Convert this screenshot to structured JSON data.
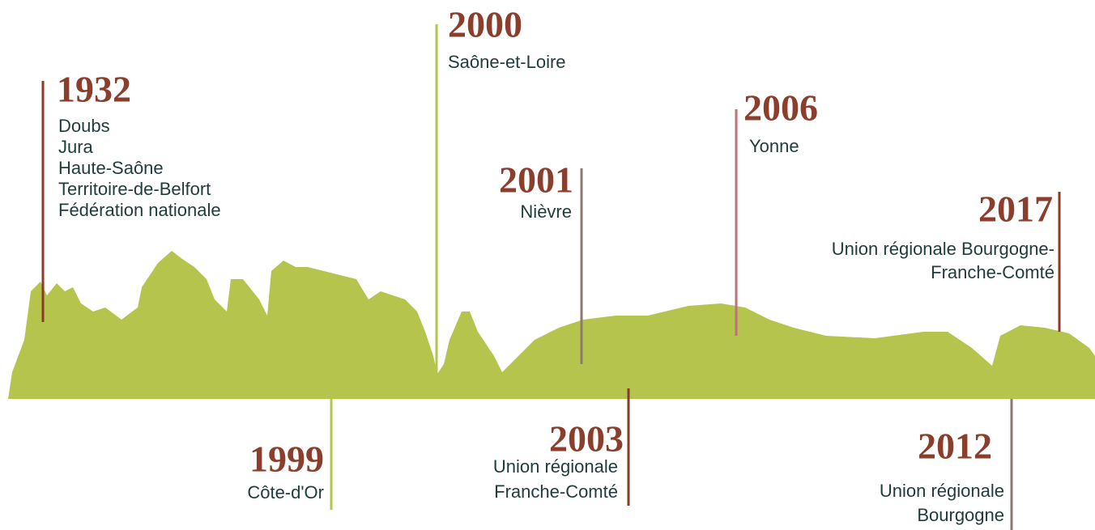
{
  "events": [
    {
      "year": "1932",
      "lines": [
        "Doubs",
        "Jura",
        "Haute-Saône",
        "Territoire-de-Belfort",
        "Fédération nationale"
      ]
    },
    {
      "year": "1999",
      "lines": [
        "Côte-d'Or"
      ]
    },
    {
      "year": "2000",
      "lines": [
        "Saône-et-Loire"
      ]
    },
    {
      "year": "2001",
      "lines": [
        "Nièvre"
      ]
    },
    {
      "year": "2003",
      "lines": [
        "Union régionale",
        "Franche-Comté"
      ]
    },
    {
      "year": "2006",
      "lines": [
        "Yonne"
      ]
    },
    {
      "year": "2012",
      "lines": [
        "Union régionale",
        "Bourgogne"
      ]
    },
    {
      "year": "2017",
      "lines": [
        "Union régionale Bourgogne-",
        "Franche-Comté"
      ]
    }
  ]
}
